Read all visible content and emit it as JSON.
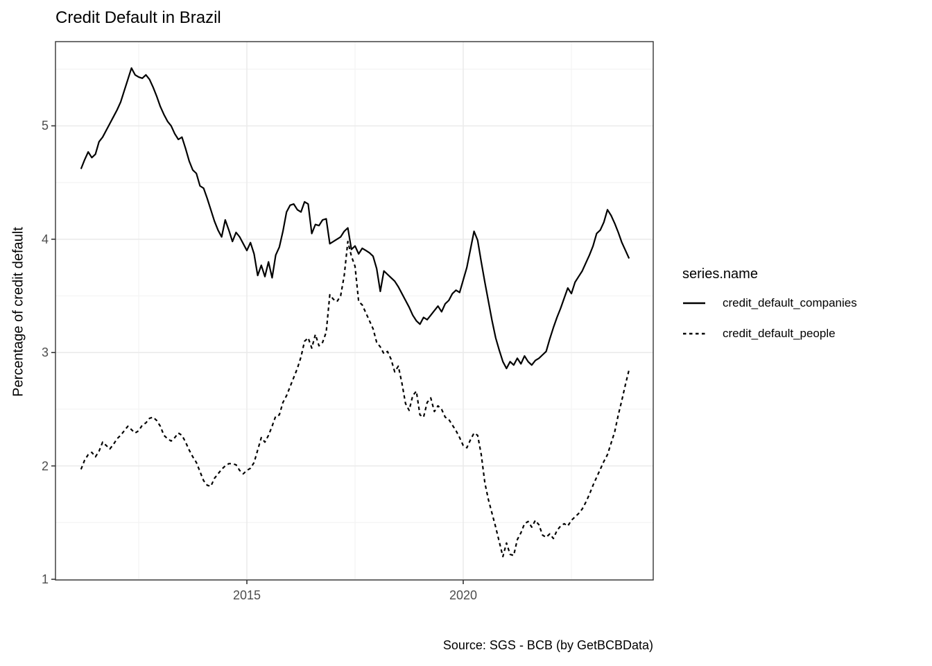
{
  "title": "Credit Default in Brazil",
  "caption": "Source: SGS - BCB (by GetBCBData)",
  "y_axis": {
    "label": "Percentage of credit default",
    "ticks": [
      "1",
      "2",
      "3",
      "4",
      "5"
    ],
    "minor_ticks": [
      1.5,
      2.5,
      3.5,
      4.5,
      5.5
    ]
  },
  "x_axis": {
    "ticks": [
      "2015",
      "2020"
    ],
    "minor_years": [
      2012.5,
      2017.5,
      2022.5
    ]
  },
  "legend": {
    "title": "series.name",
    "entries": [
      {
        "label": "credit_default_companies",
        "style": "solid"
      },
      {
        "label": "credit_default_people",
        "style": "dashed"
      }
    ]
  },
  "colors": {
    "line": "#000000",
    "grid_major": "#ebebeb",
    "grid_minor": "#f4f4f4",
    "panel_border": "#333333",
    "tick_mark": "#333333",
    "tick_label": "#4d4d4d",
    "text": "#000000",
    "background": "#ffffff"
  },
  "chart_data": {
    "type": "line",
    "title": "Credit Default in Brazil",
    "xlabel": "",
    "ylabel": "Percentage of credit default",
    "frequency": "monthly",
    "x_start": {
      "year": 2011,
      "month": 3
    },
    "x_range": [
      2010.58,
      2024.41
    ],
    "ylim": [
      0.98,
      5.74
    ],
    "grid": true,
    "legend_position": "right",
    "legend_title": "series.name",
    "series": [
      {
        "name": "credit_default_companies",
        "line_style": "solid",
        "color": "#000000",
        "values": [
          4.62,
          4.7,
          4.77,
          4.72,
          4.75,
          4.86,
          4.9,
          4.96,
          5.02,
          5.08,
          5.14,
          5.21,
          5.31,
          5.41,
          5.51,
          5.45,
          5.43,
          5.42,
          5.45,
          5.41,
          5.34,
          5.26,
          5.17,
          5.1,
          5.04,
          5.0,
          4.93,
          4.88,
          4.9,
          4.8,
          4.69,
          4.61,
          4.58,
          4.47,
          4.45,
          4.36,
          4.26,
          4.16,
          4.08,
          4.02,
          4.17,
          4.08,
          3.98,
          4.06,
          4.02,
          3.96,
          3.9,
          3.97,
          3.87,
          3.68,
          3.77,
          3.67,
          3.8,
          3.66,
          3.86,
          3.93,
          4.07,
          4.24,
          4.3,
          4.31,
          4.26,
          4.24,
          4.33,
          4.31,
          4.05,
          4.13,
          4.12,
          4.17,
          4.18,
          3.96,
          3.98,
          4.0,
          4.02,
          4.07,
          4.1,
          3.91,
          3.94,
          3.87,
          3.92,
          3.9,
          3.88,
          3.85,
          3.74,
          3.54,
          3.72,
          3.69,
          3.66,
          3.63,
          3.58,
          3.52,
          3.46,
          3.4,
          3.33,
          3.28,
          3.25,
          3.31,
          3.29,
          3.33,
          3.37,
          3.41,
          3.36,
          3.43,
          3.46,
          3.52,
          3.55,
          3.53,
          3.64,
          3.75,
          3.91,
          4.07,
          3.99,
          3.8,
          3.62,
          3.45,
          3.28,
          3.13,
          3.02,
          2.92,
          2.86,
          2.92,
          2.89,
          2.95,
          2.9,
          2.97,
          2.92,
          2.89,
          2.93,
          2.95,
          2.98,
          3.01,
          3.12,
          3.22,
          3.31,
          3.39,
          3.48,
          3.57,
          3.52,
          3.62,
          3.67,
          3.72,
          3.79,
          3.86,
          3.94,
          4.05,
          4.08,
          4.15,
          4.26,
          4.21,
          4.14,
          4.06,
          3.97,
          3.9,
          3.83
        ]
      },
      {
        "name": "credit_default_people",
        "line_style": "dashed",
        "color": "#000000",
        "values": [
          1.97,
          2.05,
          2.1,
          2.12,
          2.08,
          2.13,
          2.21,
          2.18,
          2.15,
          2.19,
          2.24,
          2.27,
          2.31,
          2.35,
          2.32,
          2.29,
          2.31,
          2.36,
          2.38,
          2.42,
          2.43,
          2.4,
          2.35,
          2.27,
          2.24,
          2.22,
          2.25,
          2.29,
          2.27,
          2.21,
          2.14,
          2.08,
          2.03,
          1.95,
          1.87,
          1.83,
          1.82,
          1.89,
          1.93,
          1.97,
          2.0,
          2.02,
          2.02,
          2.01,
          1.96,
          1.93,
          1.96,
          1.98,
          2.03,
          2.14,
          2.25,
          2.21,
          2.27,
          2.35,
          2.44,
          2.45,
          2.56,
          2.62,
          2.7,
          2.78,
          2.86,
          2.96,
          3.1,
          3.13,
          3.04,
          3.16,
          3.06,
          3.09,
          3.18,
          3.51,
          3.47,
          3.45,
          3.5,
          3.68,
          3.98,
          3.85,
          3.76,
          3.45,
          3.42,
          3.35,
          3.28,
          3.21,
          3.09,
          3.05,
          2.99,
          3.01,
          2.94,
          2.83,
          2.88,
          2.73,
          2.55,
          2.49,
          2.62,
          2.66,
          2.45,
          2.43,
          2.56,
          2.6,
          2.48,
          2.53,
          2.5,
          2.43,
          2.41,
          2.36,
          2.31,
          2.25,
          2.18,
          2.16,
          2.23,
          2.29,
          2.27,
          2.1,
          1.85,
          1.7,
          1.58,
          1.46,
          1.33,
          1.2,
          1.32,
          1.22,
          1.21,
          1.35,
          1.41,
          1.49,
          1.51,
          1.46,
          1.52,
          1.48,
          1.39,
          1.37,
          1.4,
          1.36,
          1.43,
          1.47,
          1.49,
          1.47,
          1.52,
          1.55,
          1.58,
          1.62,
          1.68,
          1.75,
          1.83,
          1.9,
          1.97,
          2.04,
          2.1,
          2.2,
          2.3,
          2.45,
          2.58,
          2.72,
          2.85
        ]
      }
    ]
  }
}
